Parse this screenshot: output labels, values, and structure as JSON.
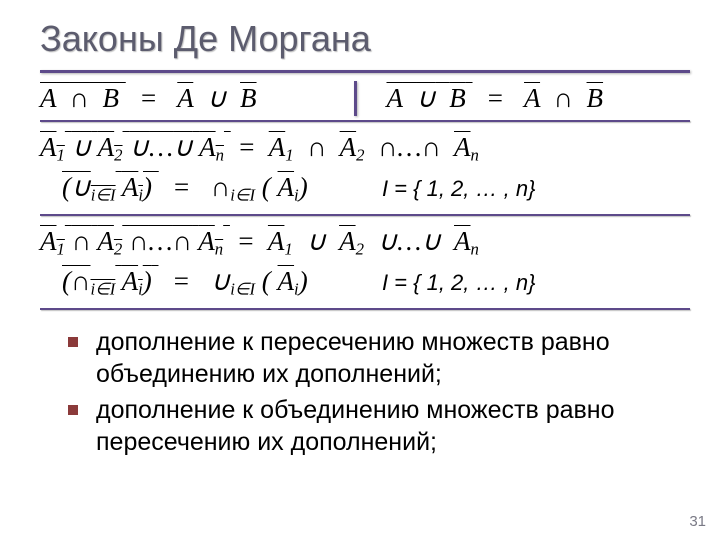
{
  "title": "Законы Де Моргана",
  "colors": {
    "rule": "#5d4a8a",
    "title": "#5c5c6e",
    "bullet": "#8b3a3a",
    "background": "#ffffff",
    "pagenum": "#7a7a86"
  },
  "typography": {
    "title_fontsize": 36,
    "formula_fontsize": 27,
    "bullet_fontsize": 25,
    "pagenum_fontsize": 15,
    "formula_font": "Times New Roman, serif",
    "body_font": "Arial, sans-serif"
  },
  "formula_left": {
    "lhs_A": "A",
    "lhs_B": "B",
    "op_lhs": "∩",
    "eq": "=",
    "rhs_A": "A",
    "rhs_B": "B",
    "op_rhs": "∪"
  },
  "formula_right": {
    "lhs_A": "A",
    "lhs_B": "B",
    "op_lhs": "∪",
    "eq": "=",
    "rhs_A": "A",
    "rhs_B": "B",
    "op_rhs": "∩"
  },
  "gen_union": {
    "lhs_open": "A",
    "sub1": "1",
    "op": "∪",
    "A2": "A",
    "sub2": "2",
    "dots": "…",
    "An": "A",
    "subn": "n",
    "eq": "=",
    "rA1": "A",
    "rsub1": "1",
    "rop": "∩",
    "rA2": "A",
    "rsub2": "2",
    "rAn": "A",
    "rsubn": "n",
    "line2_lp": "(",
    "line2_bigop": "∪",
    "line2_iel": "i∈I",
    "line2_Ai": "A",
    "line2_sub": "i",
    "line2_rp": ")",
    "line2_eq": "=",
    "line2_bigop2": "∩",
    "line2_iel2": "i∈I",
    "line2_lp2": "(",
    "line2_Ai2": "A",
    "line2_sub2": "i",
    "line2_rp2": ")",
    "Iset": "I = { 1, 2, … , n}"
  },
  "gen_inter": {
    "lhs_open": "A",
    "sub1": "1",
    "op": "∩",
    "A2": "A",
    "sub2": "2",
    "dots": "…",
    "An": "A",
    "subn": "n",
    "eq": "=",
    "rA1": "A",
    "rsub1": "1",
    "rop": "∪",
    "rA2": "A",
    "rsub2": "2",
    "rAn": "A",
    "rsubn": "n",
    "line2_lp": "(",
    "line2_bigop": "∩",
    "line2_iel": "i∈I",
    "line2_Ai": "A",
    "line2_sub": "i",
    "line2_rp": ")",
    "line2_eq": "=",
    "line2_bigop2": "∪",
    "line2_iel2": "i∈I",
    "line2_lp2": "(",
    "line2_Ai2": "A",
    "line2_sub2": "i",
    "line2_rp2": ")",
    "Iset": "I = { 1, 2, … , n}"
  },
  "bullets": {
    "b1": "дополнение к пересечению множеств равно объединению их дополнений;",
    "b2": "дополнение к объединению множеств равно пересечению их дополнений;"
  },
  "page_number": "31"
}
